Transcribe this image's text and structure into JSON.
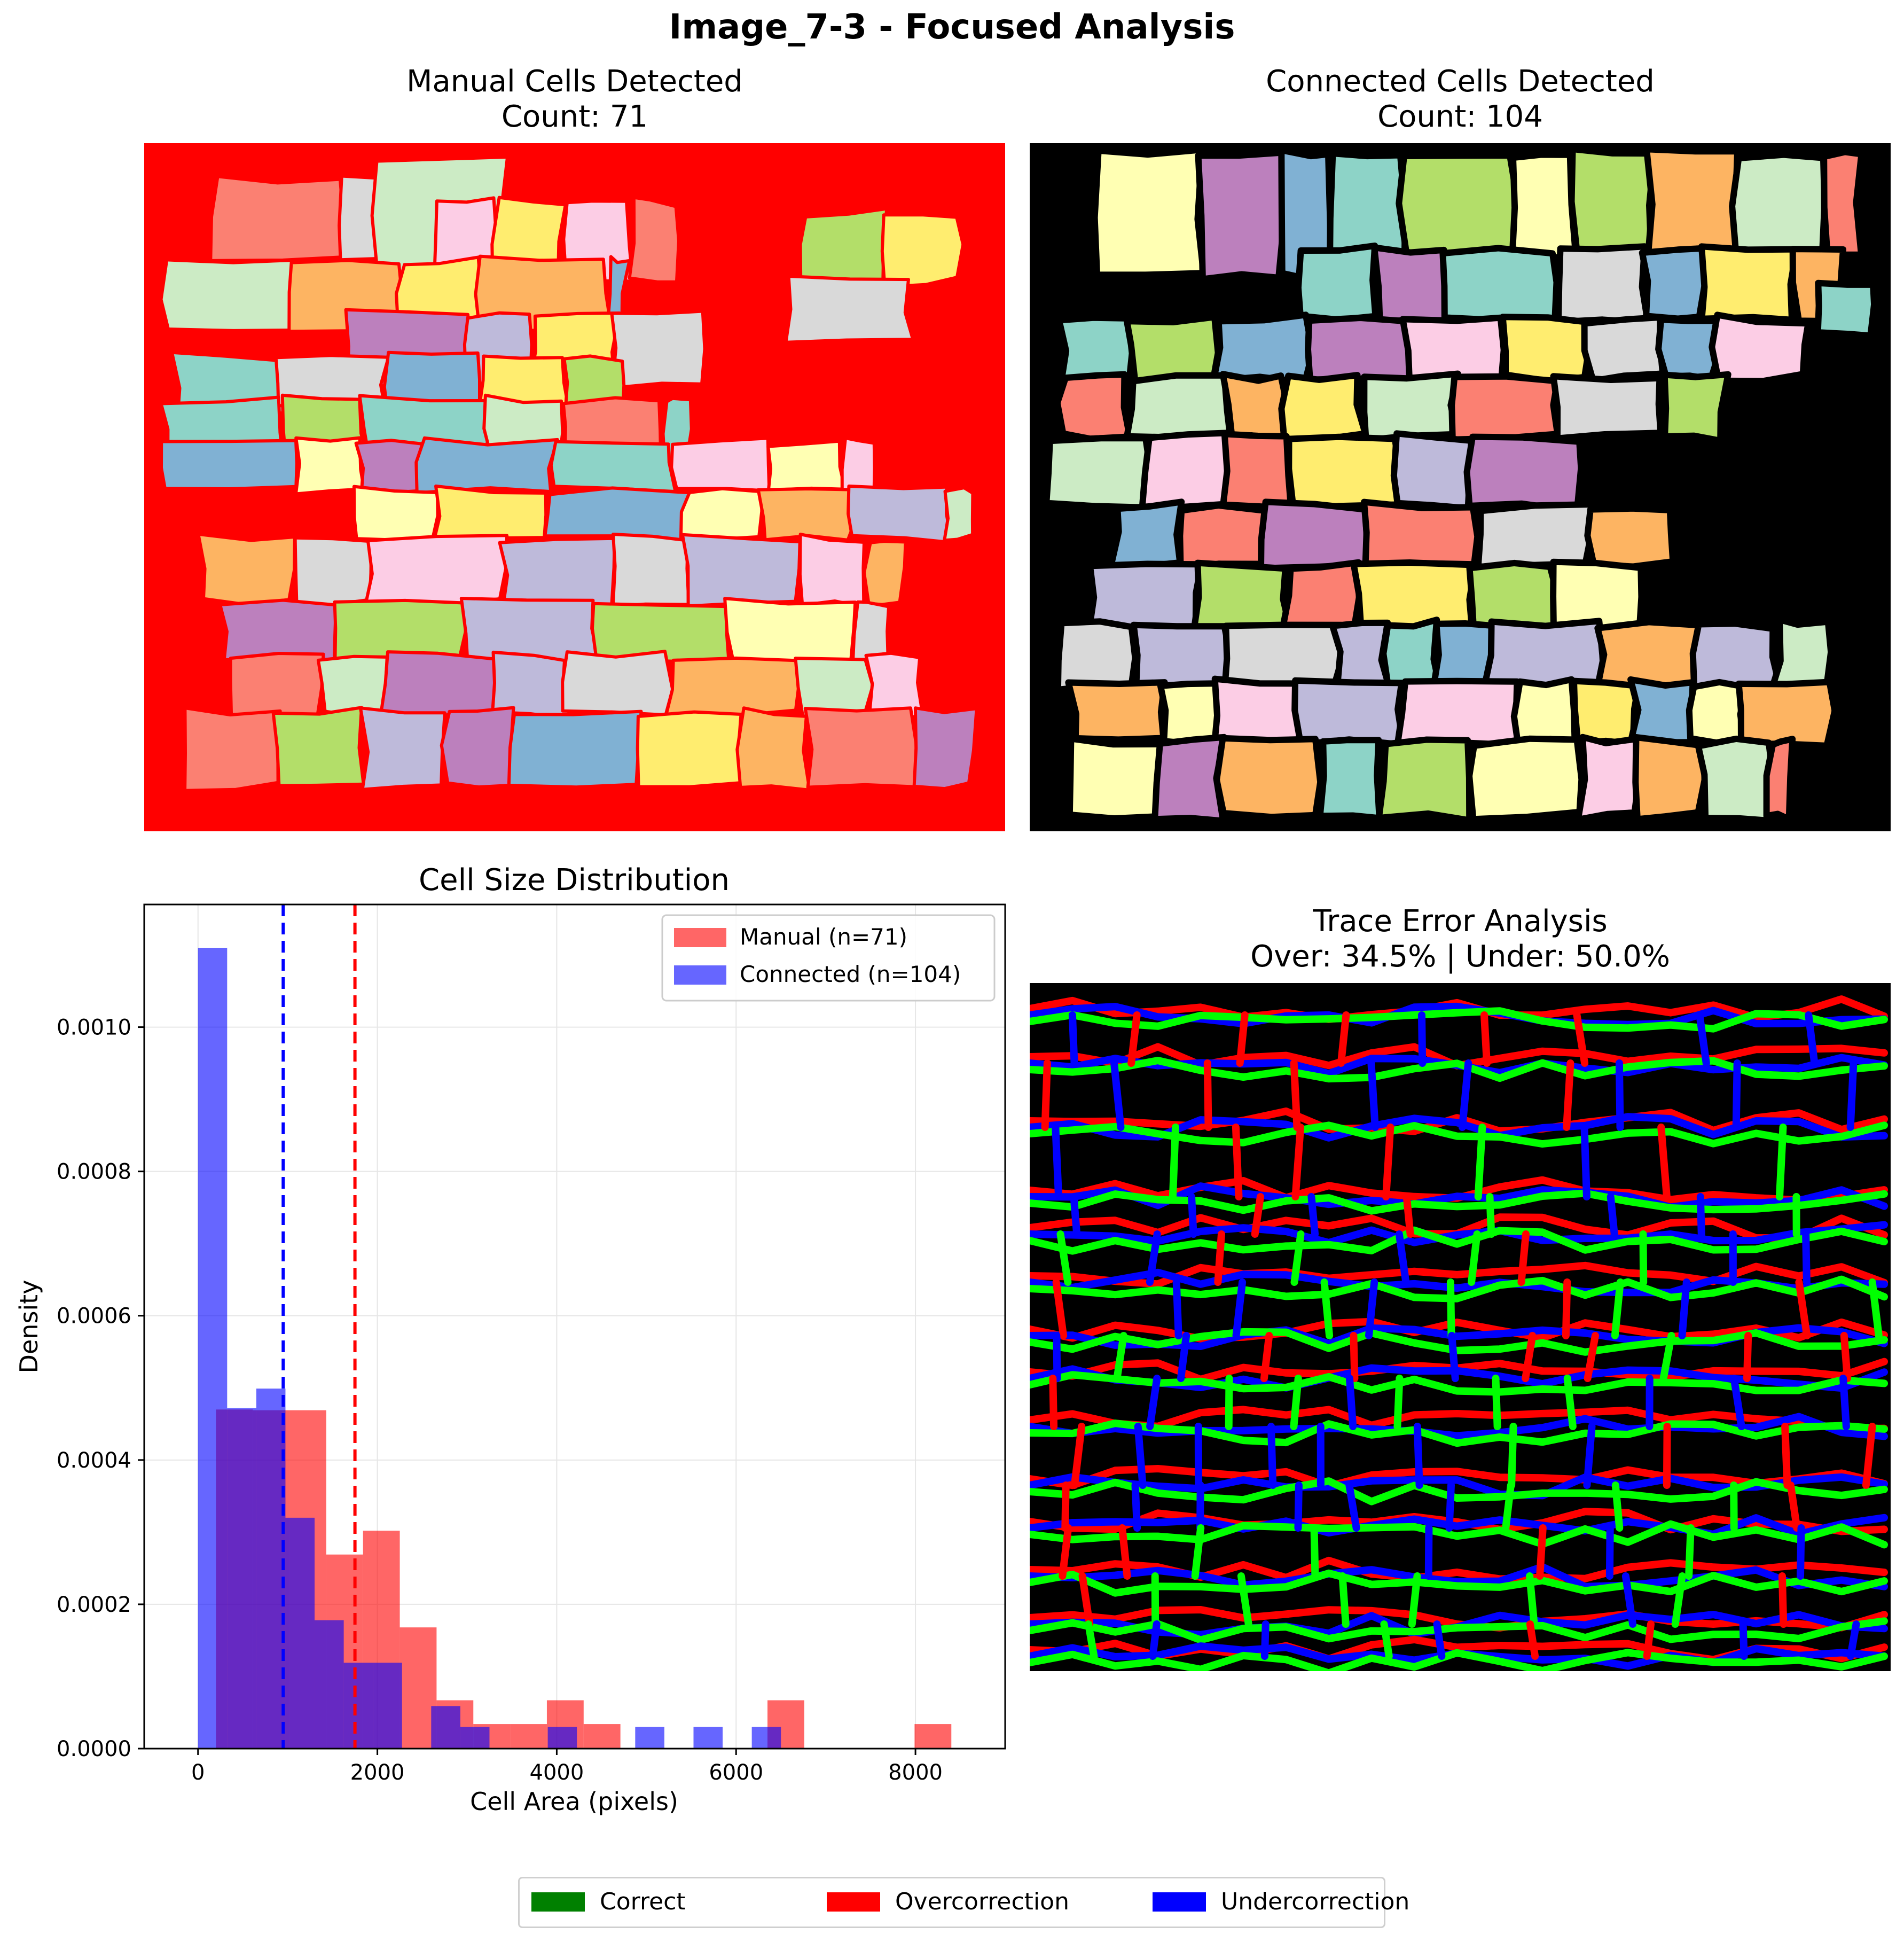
{
  "figure": {
    "title": "Image_7-3 - Focused Analysis"
  },
  "panels": {
    "manual": {
      "title_line1": "Manual Cells Detected",
      "title_line2": "Count: 71",
      "background_color": "#ff0000",
      "outline_color": "#ff0000"
    },
    "connected": {
      "title_line1": "Connected Cells Detected",
      "title_line2": "Count: 104",
      "background_color": "#000000",
      "outline_color": "#000000"
    },
    "trace": {
      "title_line1": "Trace Error Analysis",
      "title_line2": "Over: 34.5% | Under: 50.0%",
      "background_color": "#000000"
    }
  },
  "bottom_legend": {
    "items": [
      {
        "label": "Correct",
        "color": "#008000"
      },
      {
        "label": "Overcorrection",
        "color": "#ff0000"
      },
      {
        "label": "Undercorrection",
        "color": "#0000ff"
      }
    ]
  },
  "chart_data": {
    "type": "bar",
    "title": "Cell Size Distribution",
    "xlabel": "Cell Area (pixels)",
    "ylabel": "Density",
    "xlim": [
      -600,
      9000
    ],
    "ylim": [
      0,
      0.00117
    ],
    "xticks": [
      0,
      2000,
      4000,
      6000,
      8000
    ],
    "xtick_labels": [
      "0",
      "2000",
      "4000",
      "6000",
      "8000"
    ],
    "yticks": [
      0,
      0.0002,
      0.0004,
      0.0006,
      0.0008,
      0.001
    ],
    "ytick_labels": [
      "0.0000",
      "0.0002",
      "0.0004",
      "0.0006",
      "0.0008",
      "0.0010"
    ],
    "grid": true,
    "legend_position": "top-right",
    "series": [
      {
        "name": "Manual (n=71)",
        "color": "#ff0000",
        "alpha": 0.6,
        "bin_edges": [
          200,
          610,
          1020,
          1430,
          1840,
          2250,
          2660,
          3070,
          3480,
          3890,
          4300,
          4710,
          5120,
          5530,
          5940,
          6350,
          6760,
          7170,
          7580,
          7990,
          8400
        ],
        "density": [
          0.00047,
          0.000469,
          0.000469,
          0.000269,
          0.000302,
          0.000168,
          6.7e-05,
          3.4e-05,
          3.4e-05,
          6.7e-05,
          3.4e-05,
          0,
          0,
          0,
          0,
          6.7e-05,
          0,
          0,
          0,
          3.4e-05
        ],
        "mean_line": 1750
      },
      {
        "name": "Connected (n=104)",
        "color": "#0000ff",
        "alpha": 0.6,
        "bin_edges": [
          0,
          325,
          650,
          975,
          1300,
          1625,
          1950,
          2275,
          2600,
          2925,
          3250,
          3575,
          3900,
          4225,
          4550,
          4875,
          5200,
          5525,
          5850,
          6175,
          6500
        ],
        "density": [
          0.00111,
          0.000472,
          0.000499,
          0.00032,
          0.000178,
          0.000119,
          0.000119,
          0,
          5.9e-05,
          3e-05,
          0,
          0,
          3e-05,
          0,
          0,
          3e-05,
          0,
          3e-05,
          0,
          3e-05
        ],
        "mean_line": 950
      }
    ]
  }
}
